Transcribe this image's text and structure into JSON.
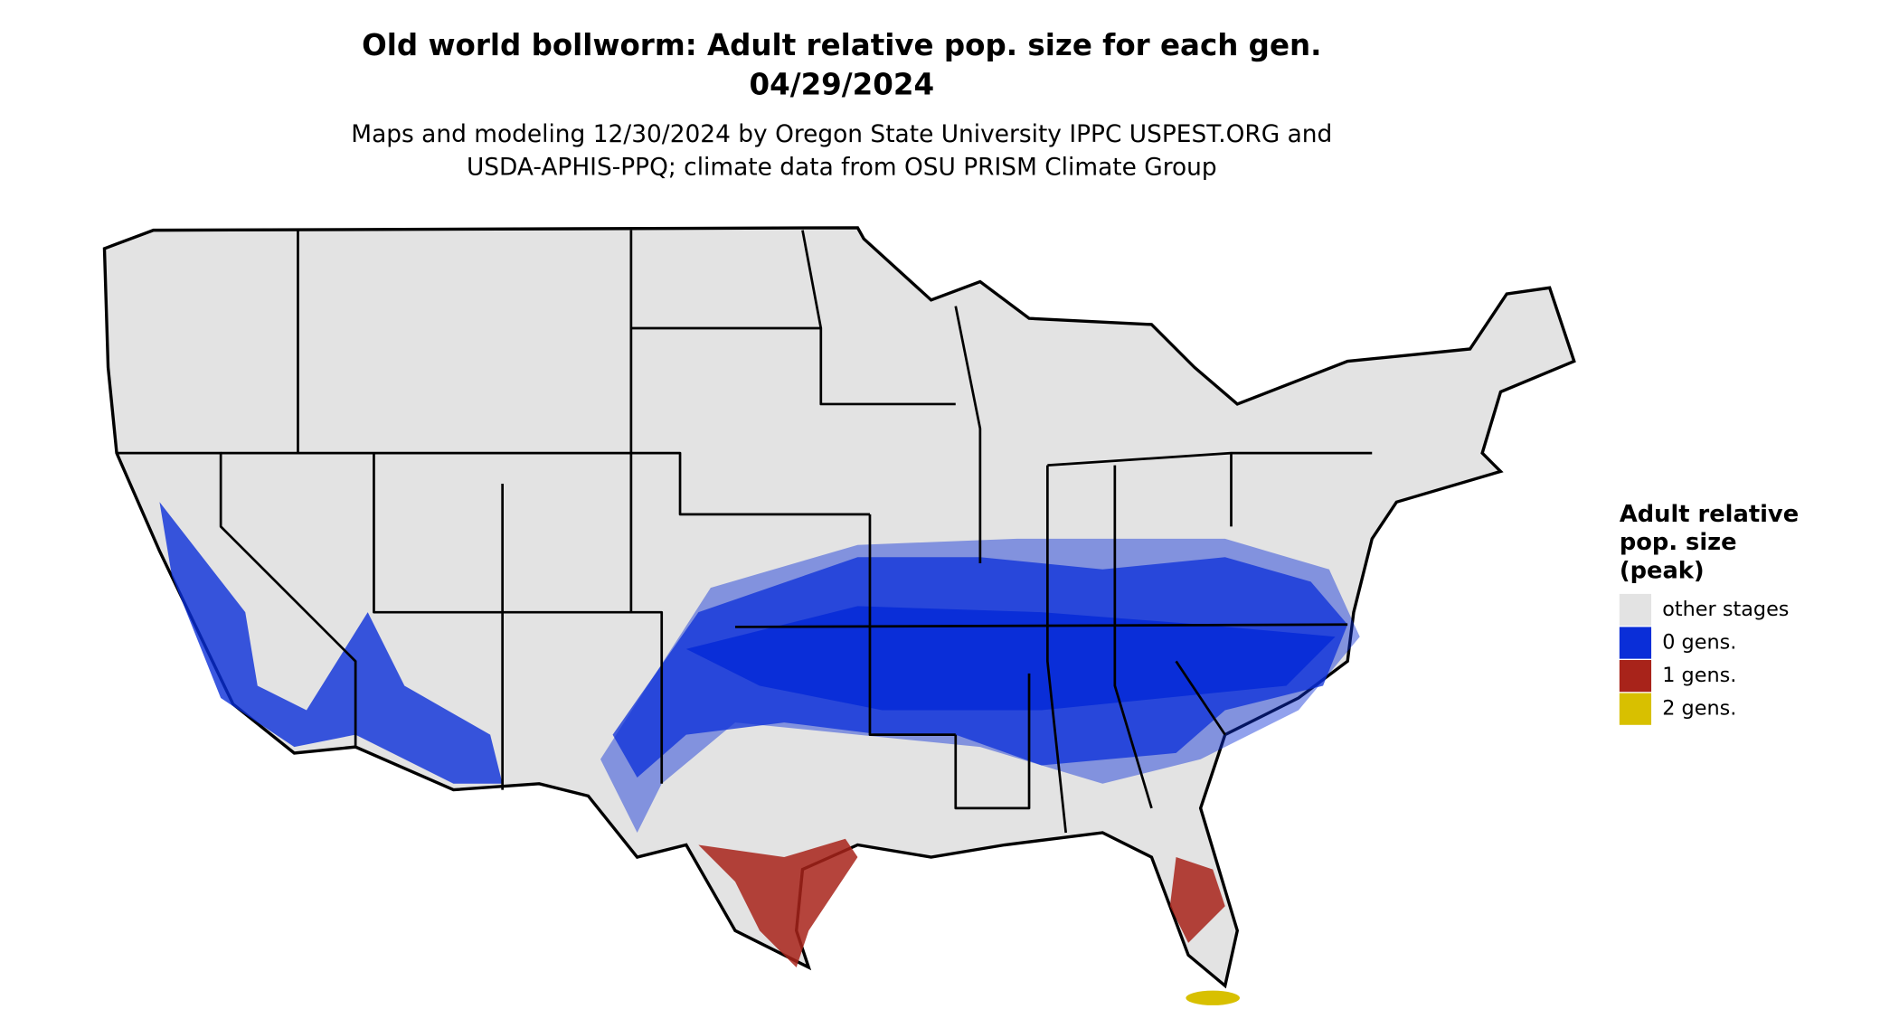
{
  "header": {
    "title": [
      "Old world bollworm: Adult relative pop. size for each gen.",
      "04/29/2024"
    ],
    "subtitle": [
      "Maps and modeling 12/30/2024 by Oregon State University IPPC USPEST.ORG and",
      "USDA-APHIS-PPQ; climate data from OSU PRISM Climate Group"
    ]
  },
  "legend": {
    "title": [
      "Adult relative",
      "pop. size",
      "(peak)"
    ],
    "items": [
      {
        "label": "other stages",
        "color": "#e3e3e3"
      },
      {
        "label": "0 gens.",
        "color": "#0a2ed8"
      },
      {
        "label": "1 gens.",
        "color": "#a8231a"
      },
      {
        "label": "2 gens.",
        "color": "#d8c000"
      }
    ]
  }
}
